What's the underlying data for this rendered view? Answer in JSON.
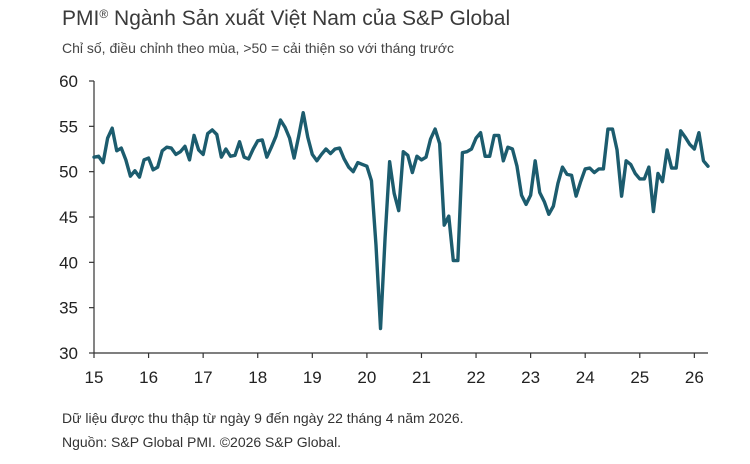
{
  "header": {
    "title": "PMI",
    "title_mark": "®",
    "title_rest": " Ngành Sản xuất Việt Nam của S&P Global",
    "subtitle": "Chỉ số, điều chỉnh theo mùa, >50 = cải thiện so với tháng trước"
  },
  "footer": {
    "note": "Dữ liệu được thu thập từ ngày 9 đến ngày 22 tháng 4 năm 2026.",
    "source": "Nguồn: S&P Global PMI. ©2026 S&P Global."
  },
  "colors": {
    "line": "#1c5c6e",
    "axis": "#333333",
    "gridline": "#e6e6e6"
  },
  "chart_data": {
    "type": "line",
    "title": "PMI® Ngành Sản xuất Việt Nam của S&P Global",
    "subtitle": "Chỉ số, điều chỉnh theo mùa, >50 = cải thiện so với tháng trước",
    "xlabel": "",
    "ylabel": "",
    "ylim": [
      30,
      60
    ],
    "yticks": [
      30,
      35,
      40,
      45,
      50,
      55,
      60
    ],
    "xlim": [
      "2015-01",
      "2026-04"
    ],
    "xticks": [
      {
        "label": "15",
        "x": "2015-01"
      },
      {
        "label": "16",
        "x": "2016-01"
      },
      {
        "label": "17",
        "x": "2017-01"
      },
      {
        "label": "18",
        "x": "2018-01"
      },
      {
        "label": "19",
        "x": "2019-01"
      },
      {
        "label": "20",
        "x": "2020-01"
      },
      {
        "label": "21",
        "x": "2021-01"
      },
      {
        "label": "22",
        "x": "2022-01"
      },
      {
        "label": "23",
        "x": "2023-01"
      },
      {
        "label": "24",
        "x": "2024-01"
      },
      {
        "label": "25",
        "x": "2025-01"
      },
      {
        "label": "26",
        "x": "2026-01"
      }
    ],
    "grid": false,
    "legend": "none",
    "series": [
      {
        "start": "2015-01",
        "frequency": "monthly",
        "values": [
          51.6,
          51.7,
          51.0,
          53.7,
          54.8,
          52.3,
          52.6,
          51.3,
          49.5,
          50.1,
          49.4,
          51.3,
          51.5,
          50.2,
          50.5,
          52.3,
          52.7,
          52.6,
          51.9,
          52.2,
          52.8,
          51.3,
          54.0,
          52.4,
          51.9,
          54.2,
          54.6,
          54.1,
          51.6,
          52.5,
          51.7,
          51.8,
          53.3,
          51.6,
          51.4,
          52.5,
          53.4,
          53.5,
          51.6,
          52.7,
          53.9,
          55.7,
          54.9,
          53.7,
          51.5,
          53.9,
          56.5,
          53.8,
          51.9,
          51.2,
          51.9,
          52.5,
          52.0,
          52.5,
          52.6,
          51.4,
          50.5,
          50.0,
          51.0,
          50.8,
          50.6,
          49.0,
          41.9,
          32.7,
          42.7,
          51.1,
          47.6,
          45.7,
          52.2,
          51.8,
          49.9,
          51.7,
          51.3,
          51.6,
          53.6,
          54.7,
          53.1,
          44.1,
          45.1,
          40.2,
          40.2,
          52.1,
          52.2,
          52.5,
          53.7,
          54.3,
          51.7,
          51.7,
          54.0,
          54.0,
          51.2,
          52.7,
          52.5,
          50.6,
          47.4,
          46.4,
          47.4,
          51.2,
          47.7,
          46.7,
          45.3,
          46.2,
          48.7,
          50.5,
          49.7,
          49.6,
          47.3,
          48.9,
          50.3,
          50.4,
          49.9,
          50.3,
          50.3,
          54.7,
          54.7,
          52.4,
          47.3,
          51.2,
          50.8,
          49.8,
          49.2,
          49.2,
          50.5,
          45.6,
          49.8,
          48.9,
          52.4,
          50.4,
          50.4,
          54.5,
          53.8,
          53.0,
          52.5,
          54.3,
          51.2,
          50.6
        ]
      }
    ]
  }
}
